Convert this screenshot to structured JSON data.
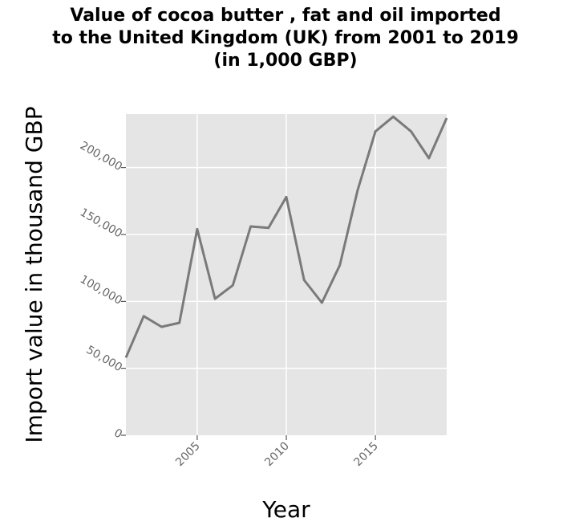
{
  "chart_data": {
    "type": "line",
    "title_lines": [
      "Value of cocoa butter , fat and oil imported",
      "to the United Kingdom (UK) from 2001 to 2019",
      "(in 1,000 GBP)"
    ],
    "xlabel": "Year",
    "ylabel": "Import value in thousand GBP",
    "xlim": [
      2001,
      2019
    ],
    "ylim": [
      0,
      240000
    ],
    "x_ticks": [
      2005,
      2010,
      2015
    ],
    "x_tick_labels": [
      "2005",
      "2010",
      "2015"
    ],
    "y_ticks": [
      0,
      50000,
      100000,
      150000,
      200000
    ],
    "y_tick_labels": [
      "0",
      "50,000",
      "100,000",
      "150,000",
      "200,000"
    ],
    "grid": true,
    "legend": "none",
    "colors": {
      "panel": "#e5e5e5",
      "grid": "#ffffff",
      "line": "#7a7a7a"
    },
    "series": [
      {
        "x": [
          2001,
          2002,
          2003,
          2004,
          2005,
          2006,
          2007,
          2008,
          2009,
          2010,
          2011,
          2012,
          2013,
          2014,
          2015,
          2016,
          2017,
          2018,
          2019
        ],
        "values": [
          58000,
          89000,
          81000,
          84000,
          154000,
          102000,
          112000,
          156000,
          155000,
          178000,
          116000,
          99000,
          127000,
          183000,
          227000,
          238000,
          227000,
          207000,
          237000
        ]
      }
    ]
  }
}
